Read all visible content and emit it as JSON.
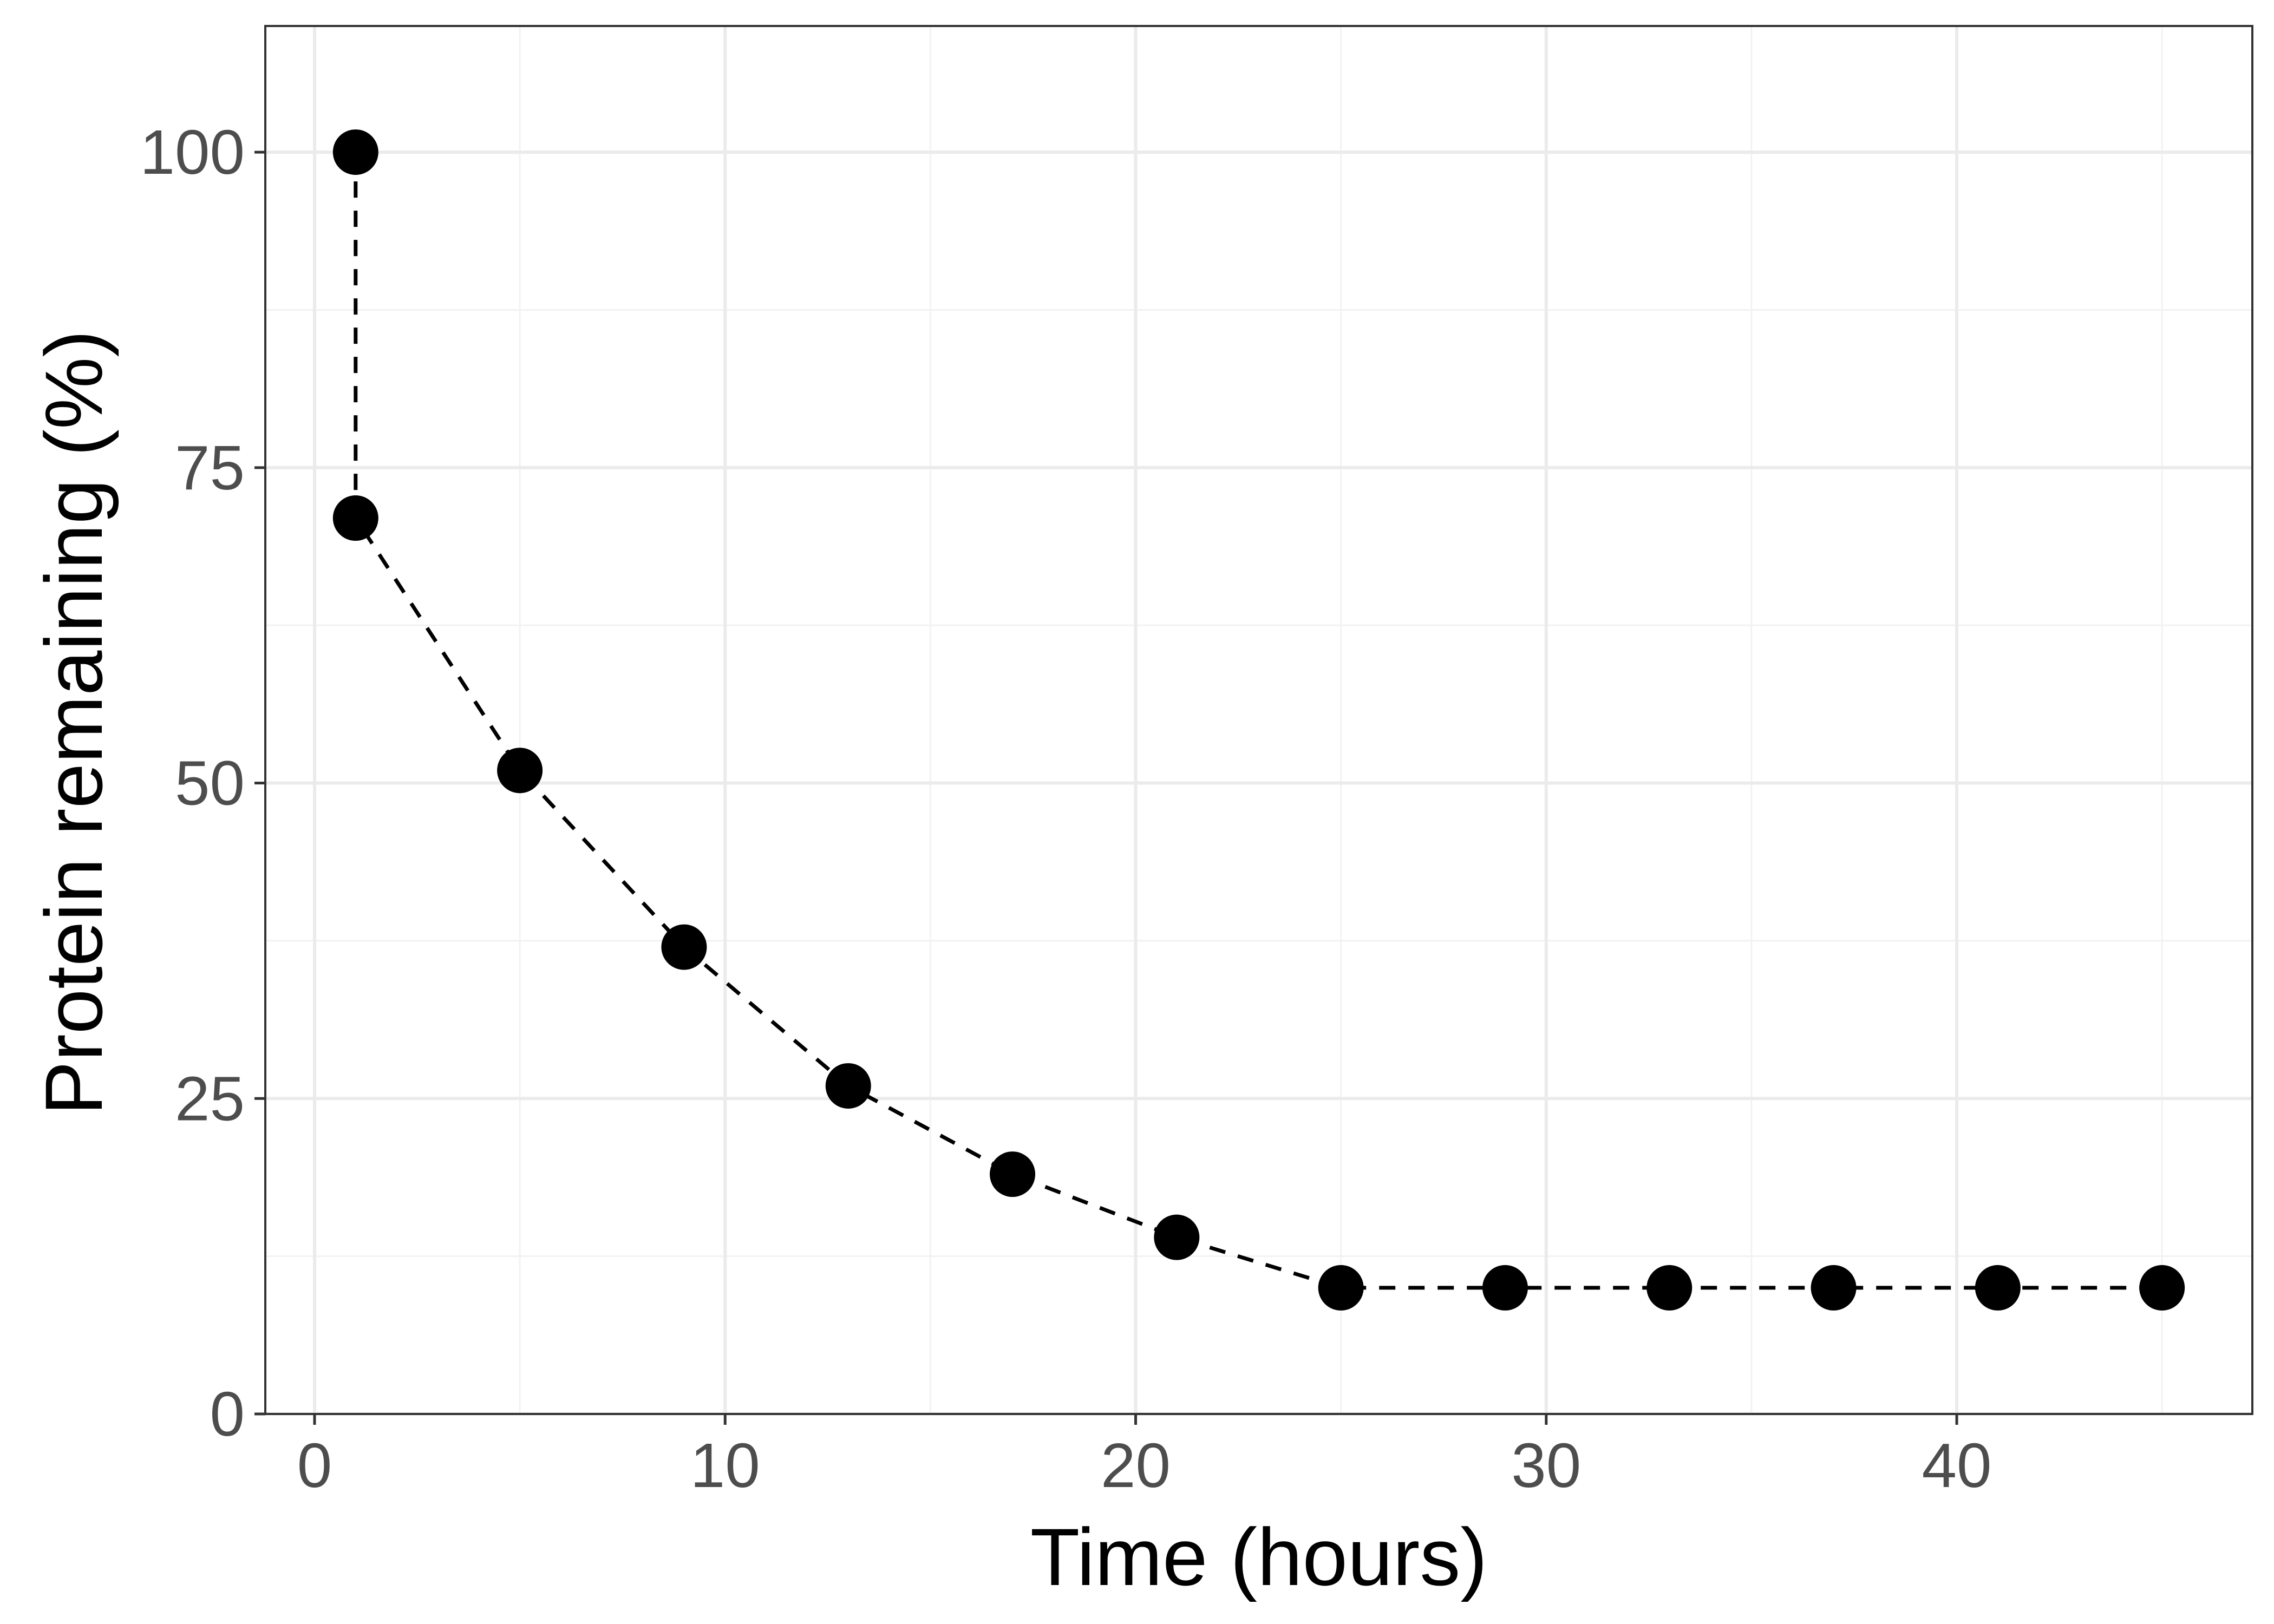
{
  "chart_data": {
    "type": "line",
    "xlabel": "Time (hours)",
    "ylabel": "Protein remaining (%)",
    "xlim": [
      -1.2,
      47.2
    ],
    "ylim": [
      0,
      110
    ],
    "xticks": [
      0,
      10,
      20,
      30,
      40
    ],
    "xtick_labels": [
      "0",
      "10",
      "20",
      "30",
      "40"
    ],
    "yticks": [
      0,
      25,
      50,
      75,
      100
    ],
    "ytick_labels": [
      "0",
      "25",
      "50",
      "75",
      "100"
    ],
    "x_minor_gridlines": [
      5,
      15,
      25,
      35,
      45
    ],
    "y_minor_gridlines": [
      12.5,
      37.5,
      62.5,
      87.5
    ],
    "grid": true,
    "legend": "none",
    "line_style": "dashed",
    "colors": {
      "points": "#000000",
      "line": "#000000",
      "grid_major": "#ebebeb",
      "grid_minor": "#f2f2f2",
      "panel_border": "#333333",
      "tick_label": "#4d4d4d"
    },
    "series": [
      {
        "x": [
          1,
          1,
          5,
          9,
          13,
          17,
          21,
          25,
          29,
          33,
          37,
          41,
          45
        ],
        "y": [
          100,
          71,
          51,
          37,
          26,
          19,
          14,
          10,
          10,
          10,
          10,
          10,
          10
        ]
      }
    ]
  }
}
